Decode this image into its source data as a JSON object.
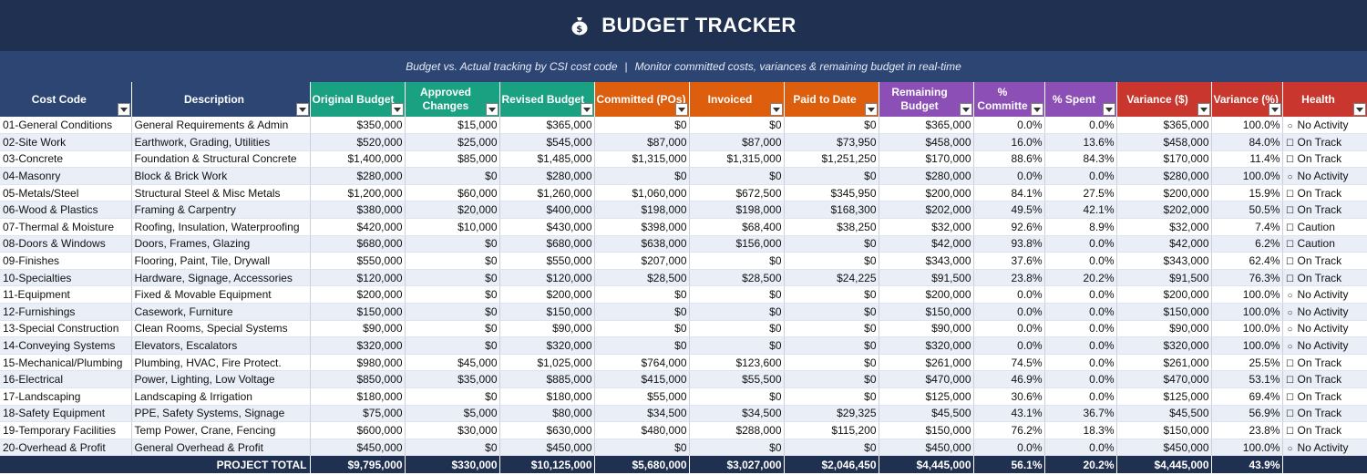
{
  "title": "BUDGET TRACKER",
  "title_icon": "money-bag-icon",
  "subtitle_left": "Budget vs. Actual tracking by CSI cost code",
  "subtitle_sep": "|",
  "subtitle_right": "Monitor committed costs, variances & remaining budget in real-time",
  "colors": {
    "title_bg": "#1f3050",
    "subtitle_bg": "#2c4573",
    "header_navy": "#2c4573",
    "header_green": "#1aa181",
    "header_orange": "#dd5f0d",
    "header_purple": "#8b4fb5",
    "header_red": "#c8362d",
    "row_alt": "#e9eef7"
  },
  "columns": [
    {
      "line1": "Cost Code",
      "line2": ""
    },
    {
      "line1": "Description",
      "line2": ""
    },
    {
      "line1": "Original Budget",
      "line2": ""
    },
    {
      "line1": "Approved",
      "line2": "Changes"
    },
    {
      "line1": "Revised Budget",
      "line2": ""
    },
    {
      "line1": "Committed (POs)",
      "line2": ""
    },
    {
      "line1": "Invoiced",
      "line2": ""
    },
    {
      "line1": "Paid to Date",
      "line2": ""
    },
    {
      "line1": "Remaining",
      "line2": "Budget"
    },
    {
      "line1": "%",
      "line2": "Committe"
    },
    {
      "line1": "% Spent",
      "line2": ""
    },
    {
      "line1": "Variance ($)",
      "line2": ""
    },
    {
      "line1": "Variance (%)",
      "line2": ""
    },
    {
      "line1": "Health",
      "line2": ""
    }
  ],
  "rows": [
    {
      "code": "01-General Conditions",
      "desc": "General Requirements & Admin",
      "orig": "$350,000",
      "chg": "$15,000",
      "rev": "$365,000",
      "com": "$0",
      "inv": "$0",
      "paid": "$0",
      "rem": "$365,000",
      "pcom": "0.0%",
      "pspent": "0.0%",
      "var": "$365,000",
      "varp": "100.0%",
      "health_sym": "○",
      "health": "No Activity"
    },
    {
      "code": "02-Site Work",
      "desc": "Earthwork, Grading, Utilities",
      "orig": "$520,000",
      "chg": "$25,000",
      "rev": "$545,000",
      "com": "$87,000",
      "inv": "$87,000",
      "paid": "$73,950",
      "rem": "$458,000",
      "pcom": "16.0%",
      "pspent": "13.6%",
      "var": "$458,000",
      "varp": "84.0%",
      "health_sym": "☐",
      "health": "On Track"
    },
    {
      "code": "03-Concrete",
      "desc": "Foundation & Structural Concrete",
      "orig": "$1,400,000",
      "chg": "$85,000",
      "rev": "$1,485,000",
      "com": "$1,315,000",
      "inv": "$1,315,000",
      "paid": "$1,251,250",
      "rem": "$170,000",
      "pcom": "88.6%",
      "pspent": "84.3%",
      "var": "$170,000",
      "varp": "11.4%",
      "health_sym": "☐",
      "health": "On Track"
    },
    {
      "code": "04-Masonry",
      "desc": "Block & Brick Work",
      "orig": "$280,000",
      "chg": "$0",
      "rev": "$280,000",
      "com": "$0",
      "inv": "$0",
      "paid": "$0",
      "rem": "$280,000",
      "pcom": "0.0%",
      "pspent": "0.0%",
      "var": "$280,000",
      "varp": "100.0%",
      "health_sym": "○",
      "health": "No Activity"
    },
    {
      "code": "05-Metals/Steel",
      "desc": "Structural Steel & Misc Metals",
      "orig": "$1,200,000",
      "chg": "$60,000",
      "rev": "$1,260,000",
      "com": "$1,060,000",
      "inv": "$672,500",
      "paid": "$345,950",
      "rem": "$200,000",
      "pcom": "84.1%",
      "pspent": "27.5%",
      "var": "$200,000",
      "varp": "15.9%",
      "health_sym": "☐",
      "health": "On Track"
    },
    {
      "code": "06-Wood & Plastics",
      "desc": "Framing & Carpentry",
      "orig": "$380,000",
      "chg": "$20,000",
      "rev": "$400,000",
      "com": "$198,000",
      "inv": "$198,000",
      "paid": "$168,300",
      "rem": "$202,000",
      "pcom": "49.5%",
      "pspent": "42.1%",
      "var": "$202,000",
      "varp": "50.5%",
      "health_sym": "☐",
      "health": "On Track"
    },
    {
      "code": "07-Thermal & Moisture",
      "desc": "Roofing, Insulation, Waterproofing",
      "orig": "$420,000",
      "chg": "$10,000",
      "rev": "$430,000",
      "com": "$398,000",
      "inv": "$68,400",
      "paid": "$38,250",
      "rem": "$32,000",
      "pcom": "92.6%",
      "pspent": "8.9%",
      "var": "$32,000",
      "varp": "7.4%",
      "health_sym": "☐",
      "health": "Caution"
    },
    {
      "code": "08-Doors & Windows",
      "desc": "Doors, Frames, Glazing",
      "orig": "$680,000",
      "chg": "$0",
      "rev": "$680,000",
      "com": "$638,000",
      "inv": "$156,000",
      "paid": "$0",
      "rem": "$42,000",
      "pcom": "93.8%",
      "pspent": "0.0%",
      "var": "$42,000",
      "varp": "6.2%",
      "health_sym": "☐",
      "health": "Caution"
    },
    {
      "code": "09-Finishes",
      "desc": "Flooring, Paint, Tile, Drywall",
      "orig": "$550,000",
      "chg": "$0",
      "rev": "$550,000",
      "com": "$207,000",
      "inv": "$0",
      "paid": "$0",
      "rem": "$343,000",
      "pcom": "37.6%",
      "pspent": "0.0%",
      "var": "$343,000",
      "varp": "62.4%",
      "health_sym": "☐",
      "health": "On Track"
    },
    {
      "code": "10-Specialties",
      "desc": "Hardware, Signage, Accessories",
      "orig": "$120,000",
      "chg": "$0",
      "rev": "$120,000",
      "com": "$28,500",
      "inv": "$28,500",
      "paid": "$24,225",
      "rem": "$91,500",
      "pcom": "23.8%",
      "pspent": "20.2%",
      "var": "$91,500",
      "varp": "76.3%",
      "health_sym": "☐",
      "health": "On Track"
    },
    {
      "code": "11-Equipment",
      "desc": "Fixed & Movable Equipment",
      "orig": "$200,000",
      "chg": "$0",
      "rev": "$200,000",
      "com": "$0",
      "inv": "$0",
      "paid": "$0",
      "rem": "$200,000",
      "pcom": "0.0%",
      "pspent": "0.0%",
      "var": "$200,000",
      "varp": "100.0%",
      "health_sym": "○",
      "health": "No Activity"
    },
    {
      "code": "12-Furnishings",
      "desc": "Casework, Furniture",
      "orig": "$150,000",
      "chg": "$0",
      "rev": "$150,000",
      "com": "$0",
      "inv": "$0",
      "paid": "$0",
      "rem": "$150,000",
      "pcom": "0.0%",
      "pspent": "0.0%",
      "var": "$150,000",
      "varp": "100.0%",
      "health_sym": "○",
      "health": "No Activity"
    },
    {
      "code": "13-Special Construction",
      "desc": "Clean Rooms, Special Systems",
      "orig": "$90,000",
      "chg": "$0",
      "rev": "$90,000",
      "com": "$0",
      "inv": "$0",
      "paid": "$0",
      "rem": "$90,000",
      "pcom": "0.0%",
      "pspent": "0.0%",
      "var": "$90,000",
      "varp": "100.0%",
      "health_sym": "○",
      "health": "No Activity"
    },
    {
      "code": "14-Conveying Systems",
      "desc": "Elevators, Escalators",
      "orig": "$320,000",
      "chg": "$0",
      "rev": "$320,000",
      "com": "$0",
      "inv": "$0",
      "paid": "$0",
      "rem": "$320,000",
      "pcom": "0.0%",
      "pspent": "0.0%",
      "var": "$320,000",
      "varp": "100.0%",
      "health_sym": "○",
      "health": "No Activity"
    },
    {
      "code": "15-Mechanical/Plumbing",
      "desc": "Plumbing, HVAC, Fire Protect.",
      "orig": "$980,000",
      "chg": "$45,000",
      "rev": "$1,025,000",
      "com": "$764,000",
      "inv": "$123,600",
      "paid": "$0",
      "rem": "$261,000",
      "pcom": "74.5%",
      "pspent": "0.0%",
      "var": "$261,000",
      "varp": "25.5%",
      "health_sym": "☐",
      "health": "On Track"
    },
    {
      "code": "16-Electrical",
      "desc": "Power, Lighting, Low Voltage",
      "orig": "$850,000",
      "chg": "$35,000",
      "rev": "$885,000",
      "com": "$415,000",
      "inv": "$55,500",
      "paid": "$0",
      "rem": "$470,000",
      "pcom": "46.9%",
      "pspent": "0.0%",
      "var": "$470,000",
      "varp": "53.1%",
      "health_sym": "☐",
      "health": "On Track"
    },
    {
      "code": "17-Landscaping",
      "desc": "Landscaping & Irrigation",
      "orig": "$180,000",
      "chg": "$0",
      "rev": "$180,000",
      "com": "$55,000",
      "inv": "$0",
      "paid": "$0",
      "rem": "$125,000",
      "pcom": "30.6%",
      "pspent": "0.0%",
      "var": "$125,000",
      "varp": "69.4%",
      "health_sym": "☐",
      "health": "On Track"
    },
    {
      "code": "18-Safety Equipment",
      "desc": "PPE, Safety Systems, Signage",
      "orig": "$75,000",
      "chg": "$5,000",
      "rev": "$80,000",
      "com": "$34,500",
      "inv": "$34,500",
      "paid": "$29,325",
      "rem": "$45,500",
      "pcom": "43.1%",
      "pspent": "36.7%",
      "var": "$45,500",
      "varp": "56.9%",
      "health_sym": "☐",
      "health": "On Track"
    },
    {
      "code": "19-Temporary Facilities",
      "desc": "Temp Power, Crane, Fencing",
      "orig": "$600,000",
      "chg": "$30,000",
      "rev": "$630,000",
      "com": "$480,000",
      "inv": "$288,000",
      "paid": "$115,200",
      "rem": "$150,000",
      "pcom": "76.2%",
      "pspent": "18.3%",
      "var": "$150,000",
      "varp": "23.8%",
      "health_sym": "☐",
      "health": "On Track"
    },
    {
      "code": "20-Overhead & Profit",
      "desc": "General Overhead & Profit",
      "orig": "$450,000",
      "chg": "$0",
      "rev": "$450,000",
      "com": "$0",
      "inv": "$0",
      "paid": "$0",
      "rem": "$450,000",
      "pcom": "0.0%",
      "pspent": "0.0%",
      "var": "$450,000",
      "varp": "100.0%",
      "health_sym": "○",
      "health": "No Activity"
    }
  ],
  "total": {
    "label": "PROJECT TOTAL",
    "orig": "$9,795,000",
    "chg": "$330,000",
    "rev": "$10,125,000",
    "com": "$5,680,000",
    "inv": "$3,027,000",
    "paid": "$2,046,450",
    "rem": "$4,445,000",
    "pcom": "56.1%",
    "pspent": "20.2%",
    "var": "$4,445,000",
    "varp": "43.9%",
    "health": ""
  }
}
